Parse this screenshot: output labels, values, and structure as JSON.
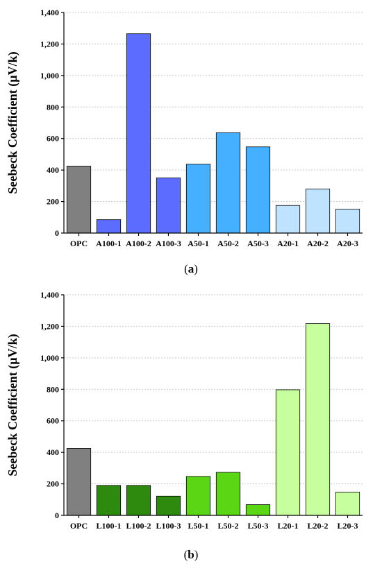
{
  "chart_data": [
    {
      "type": "bar",
      "panel": "a",
      "caption": "(a)",
      "ylabel": "Seebeck Coefficient (µV/k)",
      "xlabel": "",
      "ylim": [
        0,
        1400
      ],
      "yticks": [
        "0",
        "200",
        "400",
        "600",
        "800",
        "1,000",
        "1,200",
        "1,400"
      ],
      "grid": true,
      "categories": [
        "OPC",
        "A100-1",
        "A100-2",
        "A100-3",
        "A50-1",
        "A50-2",
        "A50-3",
        "A20-1",
        "A20-2",
        "A20-3"
      ],
      "values": [
        425,
        85,
        1265,
        350,
        437,
        637,
        547,
        175,
        280,
        152
      ],
      "colors": [
        "#808080",
        "#5b6cff",
        "#5b6cff",
        "#5b6cff",
        "#45b0ff",
        "#45b0ff",
        "#45b0ff",
        "#bfe3ff",
        "#bfe3ff",
        "#bfe3ff"
      ]
    },
    {
      "type": "bar",
      "panel": "b",
      "caption": "(b)",
      "ylabel": "Seebeck Coefficient (µV/k)",
      "xlabel": "",
      "ylim": [
        0,
        1400
      ],
      "yticks": [
        "0",
        "200",
        "400",
        "600",
        "800",
        "1,000",
        "1,200",
        "1,400"
      ],
      "grid": true,
      "categories": [
        "OPC",
        "L100-1",
        "L100-2",
        "L100-3",
        "L50-1",
        "L50-2",
        "L50-3",
        "L20-1",
        "L20-2",
        "L20-3"
      ],
      "values": [
        425,
        190,
        190,
        122,
        247,
        273,
        68,
        797,
        1217,
        148
      ],
      "colors": [
        "#808080",
        "#2d8a0f",
        "#2d8a0f",
        "#2d8a0f",
        "#5bd614",
        "#5bd614",
        "#5bd614",
        "#c8ff9e",
        "#c8ff9e",
        "#c8ff9e"
      ]
    }
  ]
}
